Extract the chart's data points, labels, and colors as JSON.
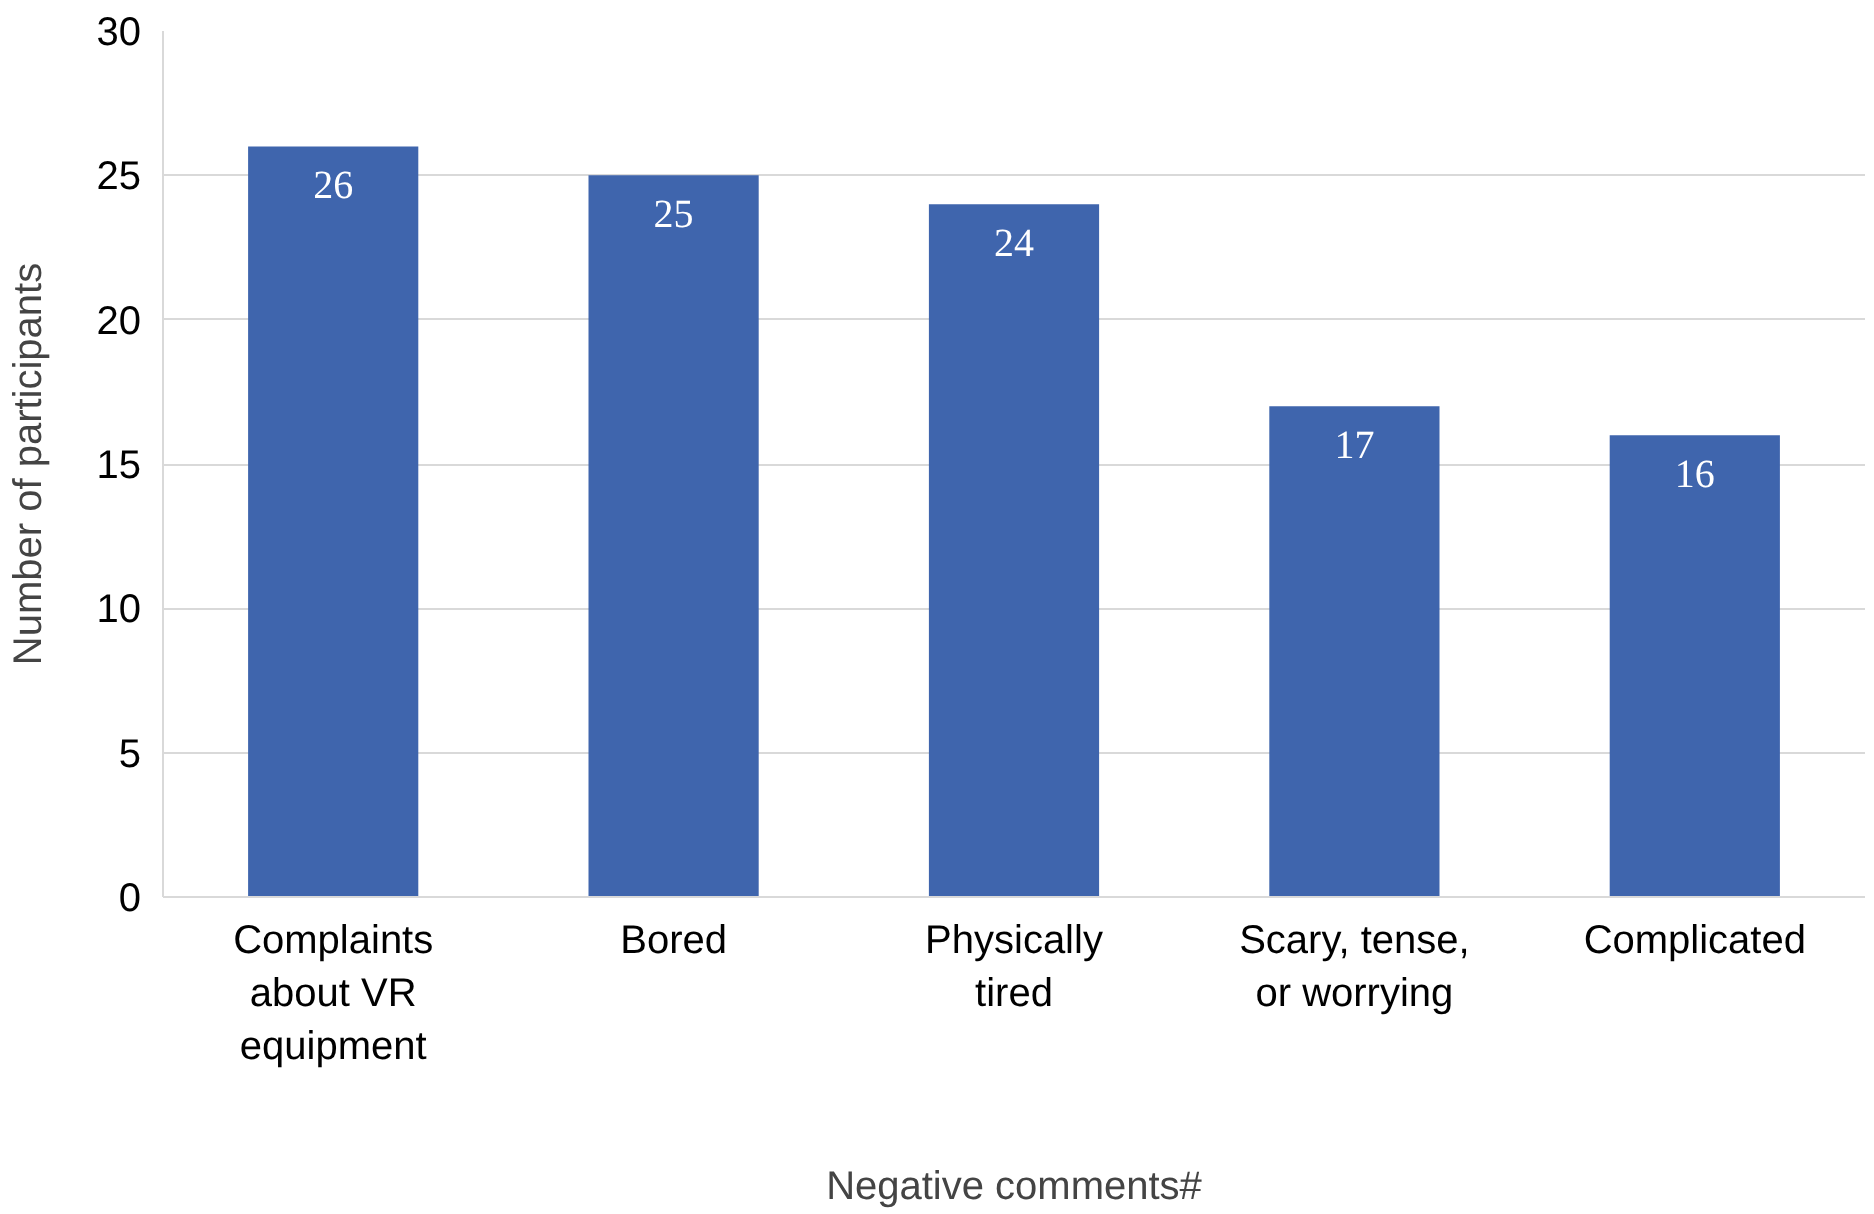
{
  "chart_data": {
    "type": "bar",
    "xlabel": "Negative comments#",
    "ylabel": "Number of participants",
    "categories": [
      "Complaints about VR equipment",
      "Bored",
      "Physically tired",
      "Scary, tense, or worrying",
      "Complicated"
    ],
    "values": [
      26,
      25,
      24,
      17,
      16
    ],
    "color": "#3f65ad",
    "ylim": [
      0,
      30
    ],
    "yticks": [
      0,
      5,
      10,
      15,
      20,
      25,
      30
    ],
    "grid": "y",
    "data_labels": true
  }
}
